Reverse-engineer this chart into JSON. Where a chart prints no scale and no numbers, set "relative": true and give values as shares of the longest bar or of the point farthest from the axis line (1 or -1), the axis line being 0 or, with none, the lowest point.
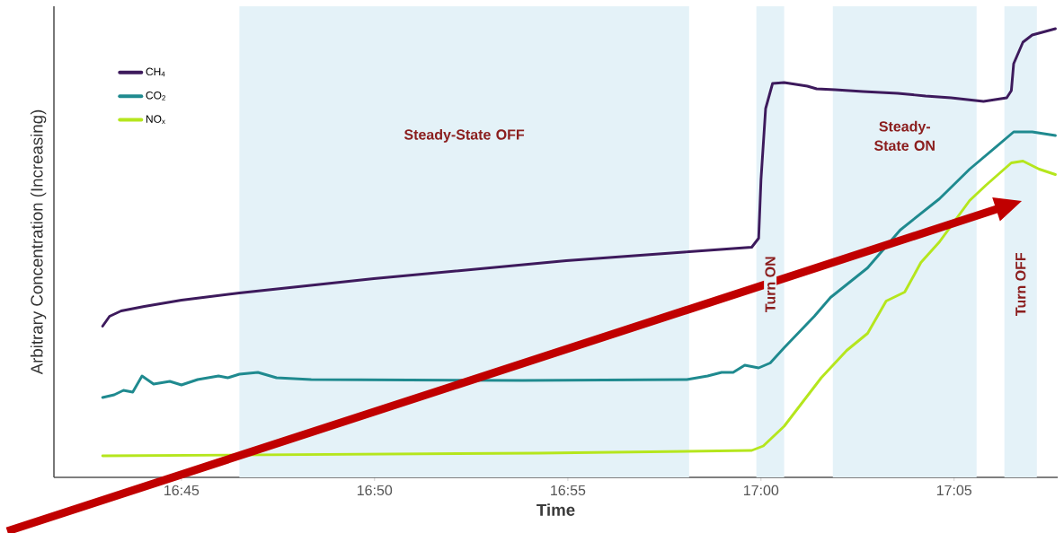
{
  "chart_data": {
    "type": "line",
    "relative": true,
    "xlabel": "Time",
    "ylabel": "Arbitrary Concentration (Increasing)",
    "xlim": [
      16.695,
      17.128
    ],
    "xticks": [
      {
        "value": 16.75,
        "label": "16:45"
      },
      {
        "value": 16.8333,
        "label": "16:50"
      },
      {
        "value": 16.9167,
        "label": "16:55"
      },
      {
        "value": 17.0,
        "label": "17:00"
      },
      {
        "value": 17.0833,
        "label": "17:05"
      }
    ],
    "legend": "top left",
    "grid": false,
    "marker": "none",
    "line_style": "solid",
    "series": [
      {
        "name": "CH$_{4}$",
        "color": "#3d1a5c",
        "x": [
          16.716,
          16.719,
          16.724,
          16.734,
          16.75,
          16.775,
          16.833,
          16.916,
          16.969,
          16.996,
          16.999,
          17.0,
          17.002,
          17.005,
          17.01,
          17.02,
          17.024,
          17.032,
          17.044,
          17.059,
          17.071,
          17.082,
          17.096,
          17.106,
          17.108,
          17.109,
          17.113,
          17.117,
          17.127
        ],
        "values": [
          0.337,
          0.359,
          0.371,
          0.381,
          0.395,
          0.411,
          0.443,
          0.483,
          0.503,
          0.513,
          0.533,
          0.663,
          0.822,
          0.878,
          0.88,
          0.872,
          0.866,
          0.864,
          0.86,
          0.856,
          0.85,
          0.846,
          0.838,
          0.846,
          0.862,
          0.922,
          0.97,
          0.986,
          1.0
        ]
      },
      {
        "name": "CO$_{2}$",
        "color": "#1f8a8f",
        "x": [
          16.716,
          16.721,
          16.725,
          16.729,
          16.733,
          16.738,
          16.745,
          16.75,
          16.757,
          16.766,
          16.77,
          16.775,
          16.783,
          16.791,
          16.806,
          16.897,
          16.968,
          16.977,
          16.983,
          16.988,
          16.993,
          16.999,
          17.004,
          17.01,
          17.023,
          17.03,
          17.046,
          17.06,
          17.077,
          17.09,
          17.102,
          17.109,
          17.117,
          17.127
        ],
        "values": [
          0.178,
          0.184,
          0.194,
          0.19,
          0.226,
          0.208,
          0.214,
          0.206,
          0.218,
          0.226,
          0.222,
          0.23,
          0.234,
          0.222,
          0.218,
          0.216,
          0.218,
          0.226,
          0.234,
          0.234,
          0.25,
          0.244,
          0.255,
          0.289,
          0.359,
          0.401,
          0.467,
          0.551,
          0.621,
          0.687,
          0.739,
          0.77,
          0.77,
          0.762
        ]
      },
      {
        "name": "NO$_{x}$",
        "color": "#b5e61d",
        "x": [
          16.716,
          16.904,
          16.996,
          17.001,
          17.01,
          17.018,
          17.026,
          17.037,
          17.046,
          17.054,
          17.062,
          17.069,
          17.077,
          17.09,
          17.097,
          17.108,
          17.113,
          17.12,
          17.127
        ],
        "values": [
          0.048,
          0.054,
          0.06,
          0.07,
          0.114,
          0.168,
          0.222,
          0.283,
          0.321,
          0.393,
          0.413,
          0.479,
          0.525,
          0.617,
          0.651,
          0.701,
          0.705,
          0.687,
          0.675
        ]
      }
    ],
    "bands": [
      {
        "axis": "x",
        "from": 16.775,
        "to": 16.969,
        "label": "Steady-State OFF",
        "color": "#e4f2f8"
      },
      {
        "axis": "x",
        "from": 16.998,
        "to": 17.01,
        "label": "Turn ON",
        "color": "#e4f2f8"
      },
      {
        "axis": "x",
        "from": 17.031,
        "to": 17.093,
        "label": "Steady-State ON",
        "color": "#e4f2f8"
      },
      {
        "axis": "x",
        "from": 17.105,
        "to": 17.119,
        "label": "Turn OFF",
        "color": "#e4f2f8"
      }
    ]
  }
}
